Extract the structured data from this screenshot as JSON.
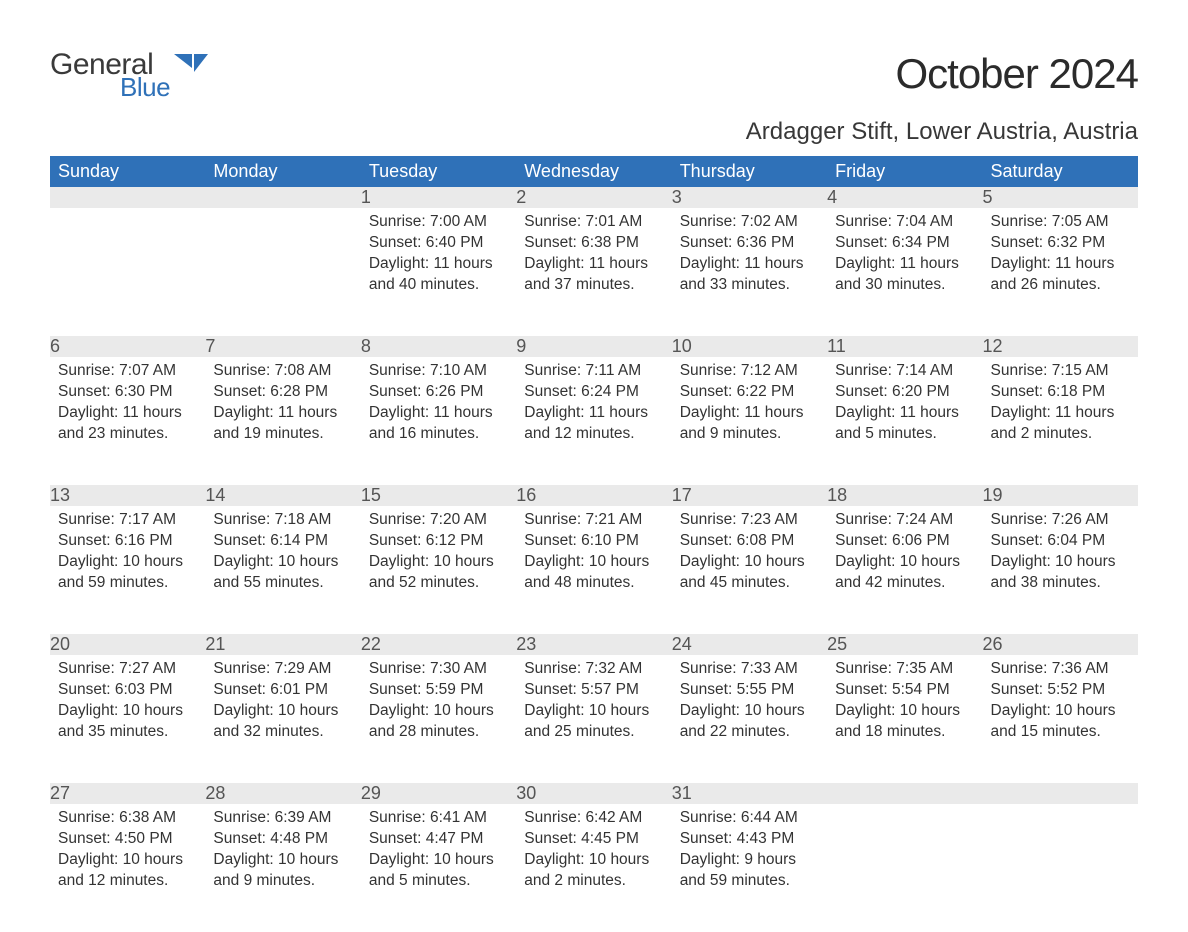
{
  "brand": {
    "part1": "General",
    "part2": "Blue",
    "part1_color": "#3a3a3a",
    "part2_color": "#2f71b8"
  },
  "title": "October 2024",
  "location": "Ardagger Stift, Lower Austria, Austria",
  "colors": {
    "header_bg": "#2f71b8",
    "header_text": "#ffffff",
    "daynum_bg": "#eaeaea",
    "daynum_border": "#2f71b8",
    "body_text": "#333333",
    "page_bg": "#ffffff"
  },
  "fonts": {
    "title_size_pt": 32,
    "location_size_pt": 18,
    "header_size_pt": 14,
    "daynum_size_pt": 14,
    "body_size_pt": 12
  },
  "layout": {
    "columns": 7,
    "rows": 5,
    "week_start": "Sunday"
  },
  "day_labels": [
    "Sunday",
    "Monday",
    "Tuesday",
    "Wednesday",
    "Thursday",
    "Friday",
    "Saturday"
  ],
  "weeks": [
    [
      null,
      null,
      {
        "n": "1",
        "sunrise": "7:00 AM",
        "sunset": "6:40 PM",
        "daylight": "11 hours and 40 minutes."
      },
      {
        "n": "2",
        "sunrise": "7:01 AM",
        "sunset": "6:38 PM",
        "daylight": "11 hours and 37 minutes."
      },
      {
        "n": "3",
        "sunrise": "7:02 AM",
        "sunset": "6:36 PM",
        "daylight": "11 hours and 33 minutes."
      },
      {
        "n": "4",
        "sunrise": "7:04 AM",
        "sunset": "6:34 PM",
        "daylight": "11 hours and 30 minutes."
      },
      {
        "n": "5",
        "sunrise": "7:05 AM",
        "sunset": "6:32 PM",
        "daylight": "11 hours and 26 minutes."
      }
    ],
    [
      {
        "n": "6",
        "sunrise": "7:07 AM",
        "sunset": "6:30 PM",
        "daylight": "11 hours and 23 minutes."
      },
      {
        "n": "7",
        "sunrise": "7:08 AM",
        "sunset": "6:28 PM",
        "daylight": "11 hours and 19 minutes."
      },
      {
        "n": "8",
        "sunrise": "7:10 AM",
        "sunset": "6:26 PM",
        "daylight": "11 hours and 16 minutes."
      },
      {
        "n": "9",
        "sunrise": "7:11 AM",
        "sunset": "6:24 PM",
        "daylight": "11 hours and 12 minutes."
      },
      {
        "n": "10",
        "sunrise": "7:12 AM",
        "sunset": "6:22 PM",
        "daylight": "11 hours and 9 minutes."
      },
      {
        "n": "11",
        "sunrise": "7:14 AM",
        "sunset": "6:20 PM",
        "daylight": "11 hours and 5 minutes."
      },
      {
        "n": "12",
        "sunrise": "7:15 AM",
        "sunset": "6:18 PM",
        "daylight": "11 hours and 2 minutes."
      }
    ],
    [
      {
        "n": "13",
        "sunrise": "7:17 AM",
        "sunset": "6:16 PM",
        "daylight": "10 hours and 59 minutes."
      },
      {
        "n": "14",
        "sunrise": "7:18 AM",
        "sunset": "6:14 PM",
        "daylight": "10 hours and 55 minutes."
      },
      {
        "n": "15",
        "sunrise": "7:20 AM",
        "sunset": "6:12 PM",
        "daylight": "10 hours and 52 minutes."
      },
      {
        "n": "16",
        "sunrise": "7:21 AM",
        "sunset": "6:10 PM",
        "daylight": "10 hours and 48 minutes."
      },
      {
        "n": "17",
        "sunrise": "7:23 AM",
        "sunset": "6:08 PM",
        "daylight": "10 hours and 45 minutes."
      },
      {
        "n": "18",
        "sunrise": "7:24 AM",
        "sunset": "6:06 PM",
        "daylight": "10 hours and 42 minutes."
      },
      {
        "n": "19",
        "sunrise": "7:26 AM",
        "sunset": "6:04 PM",
        "daylight": "10 hours and 38 minutes."
      }
    ],
    [
      {
        "n": "20",
        "sunrise": "7:27 AM",
        "sunset": "6:03 PM",
        "daylight": "10 hours and 35 minutes."
      },
      {
        "n": "21",
        "sunrise": "7:29 AM",
        "sunset": "6:01 PM",
        "daylight": "10 hours and 32 minutes."
      },
      {
        "n": "22",
        "sunrise": "7:30 AM",
        "sunset": "5:59 PM",
        "daylight": "10 hours and 28 minutes."
      },
      {
        "n": "23",
        "sunrise": "7:32 AM",
        "sunset": "5:57 PM",
        "daylight": "10 hours and 25 minutes."
      },
      {
        "n": "24",
        "sunrise": "7:33 AM",
        "sunset": "5:55 PM",
        "daylight": "10 hours and 22 minutes."
      },
      {
        "n": "25",
        "sunrise": "7:35 AM",
        "sunset": "5:54 PM",
        "daylight": "10 hours and 18 minutes."
      },
      {
        "n": "26",
        "sunrise": "7:36 AM",
        "sunset": "5:52 PM",
        "daylight": "10 hours and 15 minutes."
      }
    ],
    [
      {
        "n": "27",
        "sunrise": "6:38 AM",
        "sunset": "4:50 PM",
        "daylight": "10 hours and 12 minutes."
      },
      {
        "n": "28",
        "sunrise": "6:39 AM",
        "sunset": "4:48 PM",
        "daylight": "10 hours and 9 minutes."
      },
      {
        "n": "29",
        "sunrise": "6:41 AM",
        "sunset": "4:47 PM",
        "daylight": "10 hours and 5 minutes."
      },
      {
        "n": "30",
        "sunrise": "6:42 AM",
        "sunset": "4:45 PM",
        "daylight": "10 hours and 2 minutes."
      },
      {
        "n": "31",
        "sunrise": "6:44 AM",
        "sunset": "4:43 PM",
        "daylight": "9 hours and 59 minutes."
      },
      null,
      null
    ]
  ],
  "labels": {
    "sunrise": "Sunrise: ",
    "sunset": "Sunset: ",
    "daylight": "Daylight: "
  }
}
